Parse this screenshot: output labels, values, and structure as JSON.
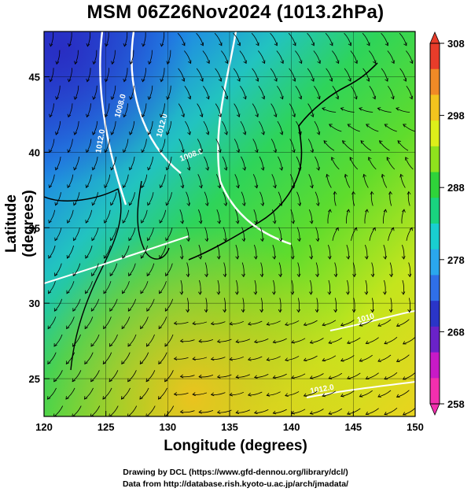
{
  "title": "MSM 06Z26Nov2024 (1013.2hPa)",
  "map": {
    "lon_range": [
      120,
      150
    ],
    "lat_range": [
      22.5,
      48
    ],
    "x_ticks": [
      "120",
      "125",
      "130",
      "135",
      "140",
      "145",
      "150"
    ],
    "y_ticks": [
      "25",
      "30",
      "35",
      "40",
      "45"
    ],
    "xlabel": "Longitude (degrees)",
    "ylabel": "Latitude  (degrees)",
    "grid": true,
    "contour_labels": [
      "1012.0",
      "1008.0",
      "1012.0",
      "1008.0",
      "1010",
      "1012.0"
    ]
  },
  "colorbar": {
    "ticks": [
      "308",
      "298",
      "288",
      "278",
      "268",
      "258"
    ],
    "colors": [
      "#e83c2a",
      "#f08a26",
      "#f2c41e",
      "#ddef1a",
      "#8fe21d",
      "#2fd33a",
      "#19d47f",
      "#19cfd0",
      "#2aa7ee",
      "#2f6fe8",
      "#2a35c8",
      "#6a22c9",
      "#c81ac7",
      "#f22fae"
    ]
  },
  "credits": {
    "line1": "Drawing by DCL (https://www.gfd-dennou.org/library/dcl/)",
    "line2": "Data from http://database.rish.kyoto-u.ac.jp/arch/jmadata/"
  }
}
